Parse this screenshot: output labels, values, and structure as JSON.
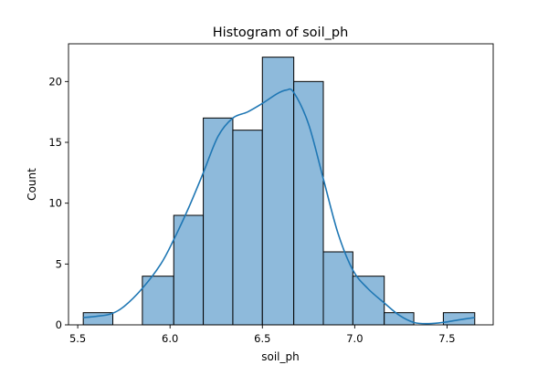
{
  "chart_data": {
    "type": "bar",
    "title": "Histogram of soil_ph",
    "xlabel": "soil_ph",
    "ylabel": "Count",
    "xlim": [
      5.45,
      7.75
    ],
    "ylim": [
      0,
      23.1
    ],
    "xticks": [
      5.5,
      6.0,
      6.5,
      7.0,
      7.5
    ],
    "xtick_labels": [
      "5.5",
      "6.0",
      "6.5",
      "7.0",
      "7.5"
    ],
    "yticks": [
      0,
      5,
      10,
      15,
      20
    ],
    "ytick_labels": [
      "0",
      "5",
      "10",
      "15",
      "20"
    ],
    "bins": [
      {
        "x0": 5.53,
        "x1": 5.69,
        "count": 1
      },
      {
        "x0": 5.69,
        "x1": 5.85,
        "count": 0
      },
      {
        "x0": 5.85,
        "x1": 6.02,
        "count": 4
      },
      {
        "x0": 6.02,
        "x1": 6.18,
        "count": 9
      },
      {
        "x0": 6.18,
        "x1": 6.34,
        "count": 17
      },
      {
        "x0": 6.34,
        "x1": 6.5,
        "count": 16
      },
      {
        "x0": 6.5,
        "x1": 6.67,
        "count": 22
      },
      {
        "x0": 6.67,
        "x1": 6.83,
        "count": 20
      },
      {
        "x0": 6.83,
        "x1": 6.99,
        "count": 6
      },
      {
        "x0": 6.99,
        "x1": 7.16,
        "count": 4
      },
      {
        "x0": 7.16,
        "x1": 7.32,
        "count": 1
      },
      {
        "x0": 7.32,
        "x1": 7.48,
        "count": 0
      },
      {
        "x0": 7.48,
        "x1": 7.65,
        "count": 1
      }
    ],
    "kde": {
      "x": [
        5.53,
        5.6,
        5.68,
        5.75,
        5.85,
        5.95,
        6.02,
        6.1,
        6.18,
        6.26,
        6.34,
        6.42,
        6.5,
        6.58,
        6.63,
        6.67,
        6.75,
        6.83,
        6.91,
        6.99,
        7.07,
        7.16,
        7.24,
        7.32,
        7.4,
        7.48,
        7.56,
        7.65
      ],
      "y": [
        0.6,
        0.7,
        0.9,
        1.5,
        3.0,
        5.0,
        7.0,
        9.6,
        12.5,
        15.5,
        17.0,
        17.5,
        18.2,
        19.0,
        19.3,
        19.1,
        16.5,
        12.0,
        7.5,
        4.5,
        3.0,
        1.8,
        0.8,
        0.2,
        0.1,
        0.2,
        0.4,
        0.6
      ],
      "color": "#1f77b4"
    },
    "bar_color": "#8ebadb",
    "grid": false
  }
}
